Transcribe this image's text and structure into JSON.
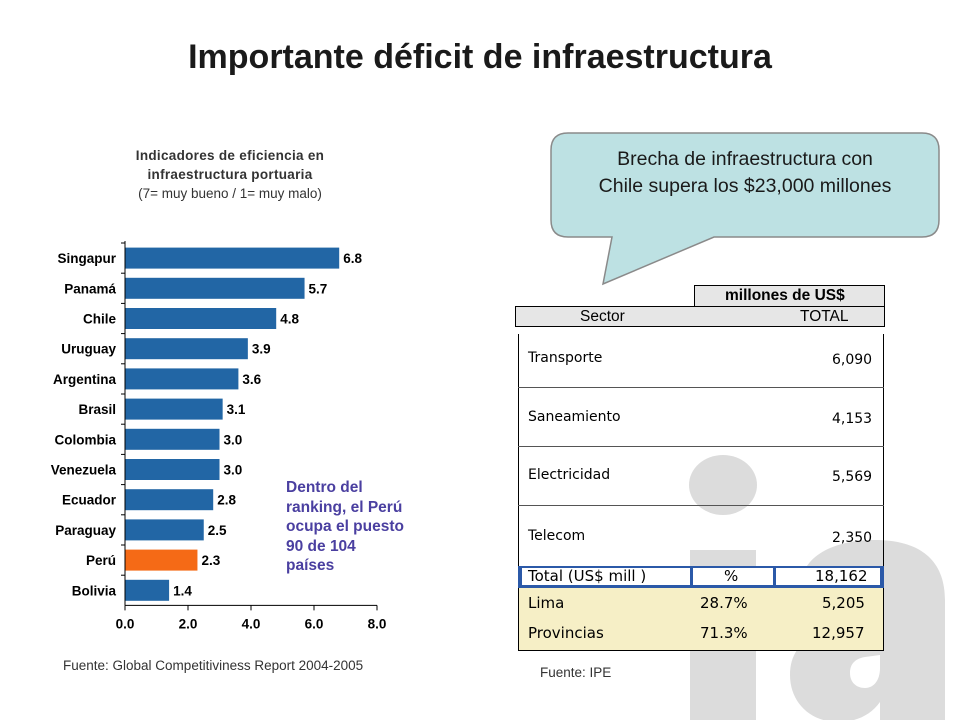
{
  "title": "Importante déficit de infraestructura",
  "chart_caption": {
    "line1": "Indicadores de eficiencia en",
    "line2": "infraestructura portuaria",
    "line3": "(7= muy bueno / 1= muy malo)"
  },
  "chart_data": {
    "type": "bar",
    "orientation": "horizontal",
    "categories": [
      "Singapur",
      "Panamá",
      "Chile",
      "Uruguay",
      "Argentina",
      "Brasil",
      "Colombia",
      "Venezuela",
      "Ecuador",
      "Paraguay",
      "Perú",
      "Bolivia"
    ],
    "values": [
      6.8,
      5.7,
      4.8,
      3.9,
      3.6,
      3.1,
      3.0,
      3.0,
      2.8,
      2.5,
      2.3,
      1.4
    ],
    "value_labels": [
      "6.8",
      "5.7",
      "4.8",
      "3.9",
      "3.6",
      "3.1",
      "3.0",
      "3.0",
      "2.8",
      "2.5",
      "2.3",
      "1.4"
    ],
    "xlim": [
      0,
      8
    ],
    "x_ticks": [
      "0.0",
      "2.0",
      "4.0",
      "6.0",
      "8.0"
    ],
    "bar_color": "#2266a5",
    "highlight_category": "Perú",
    "highlight_color": "#f56a16"
  },
  "note": "Dentro del ranking, el Perú ocupa el puesto 90 de 104 países",
  "source_left": "Fuente: Global Competitiviness Report 2004-2005",
  "callout": {
    "line1": "Brecha de infraestructura con",
    "line2": "Chile supera los $23,000 millones",
    "fill": "#bde1e3"
  },
  "table": {
    "unit_header": "millones de US$",
    "col_sector": "Sector",
    "col_total": "TOTAL",
    "rows": [
      {
        "sector": "Transporte",
        "total": "6,090"
      },
      {
        "sector": "Saneamiento",
        "total": "4,153"
      },
      {
        "sector": "Electricidad",
        "total": "5,569"
      },
      {
        "sector": "Telecom",
        "total": "2,350"
      }
    ],
    "summary_header": {
      "label": "Total (US$ mill )",
      "pct": "%",
      "total": "18,162"
    },
    "summary_rows": [
      {
        "label": "Lima",
        "pct": "28.7%",
        "total": "5,205"
      },
      {
        "label": "Provincias",
        "pct": "71.3%",
        "total": "12,957"
      }
    ],
    "header_fill": "#2b59a8",
    "summary_fill": "#f6efc6"
  },
  "source_right": "Fuente: IPE",
  "logo_text": "ia"
}
